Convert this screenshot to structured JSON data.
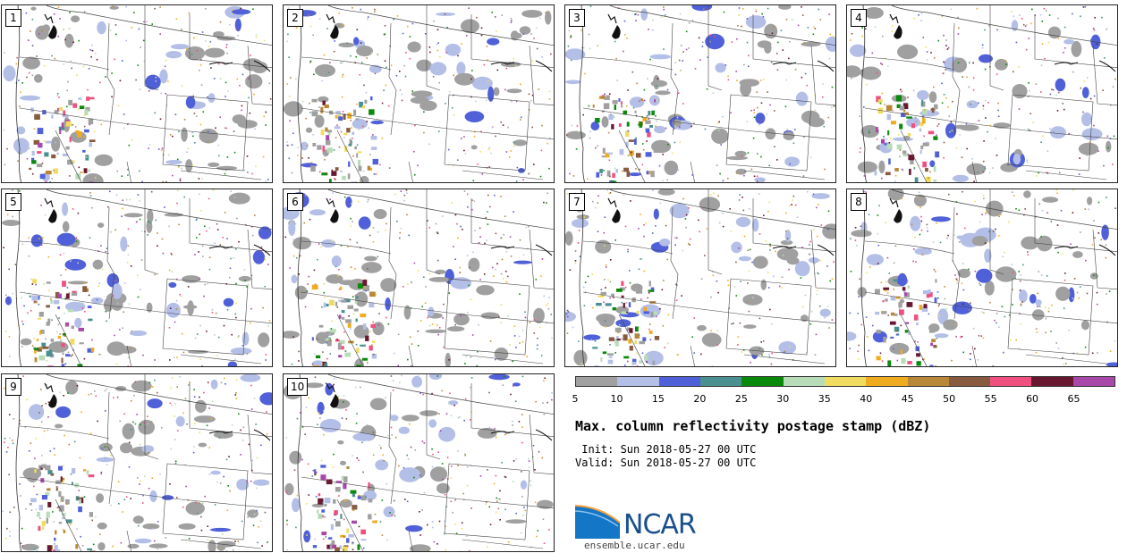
{
  "panels": [
    {
      "label": "1"
    },
    {
      "label": "2"
    },
    {
      "label": "3"
    },
    {
      "label": "4"
    },
    {
      "label": "5"
    },
    {
      "label": "6"
    },
    {
      "label": "7"
    },
    {
      "label": "8"
    },
    {
      "label": "9"
    },
    {
      "label": "10"
    }
  ],
  "colorbar": {
    "ticks": [
      "5",
      "10",
      "15",
      "20",
      "25",
      "30",
      "35",
      "40",
      "45",
      "50",
      "55",
      "60",
      "65"
    ],
    "colors": [
      "#a0a0a0",
      "#b4bfe8",
      "#5060d8",
      "#4a9090",
      "#0a8a0a",
      "#b8dcb8",
      "#f0dc60",
      "#f0ac20",
      "#b88838",
      "#885a40",
      "#f05080",
      "#681830",
      "#a848a8"
    ]
  },
  "title": "Max. column reflectivity postage stamp (dBZ)",
  "init": " Init: Sun 2018-05-27 00 UTC",
  "valid": "Valid: Sun 2018-05-27 00 UTC",
  "logo": {
    "text": "NCAR",
    "site": "ensemble.ucar.edu"
  }
}
